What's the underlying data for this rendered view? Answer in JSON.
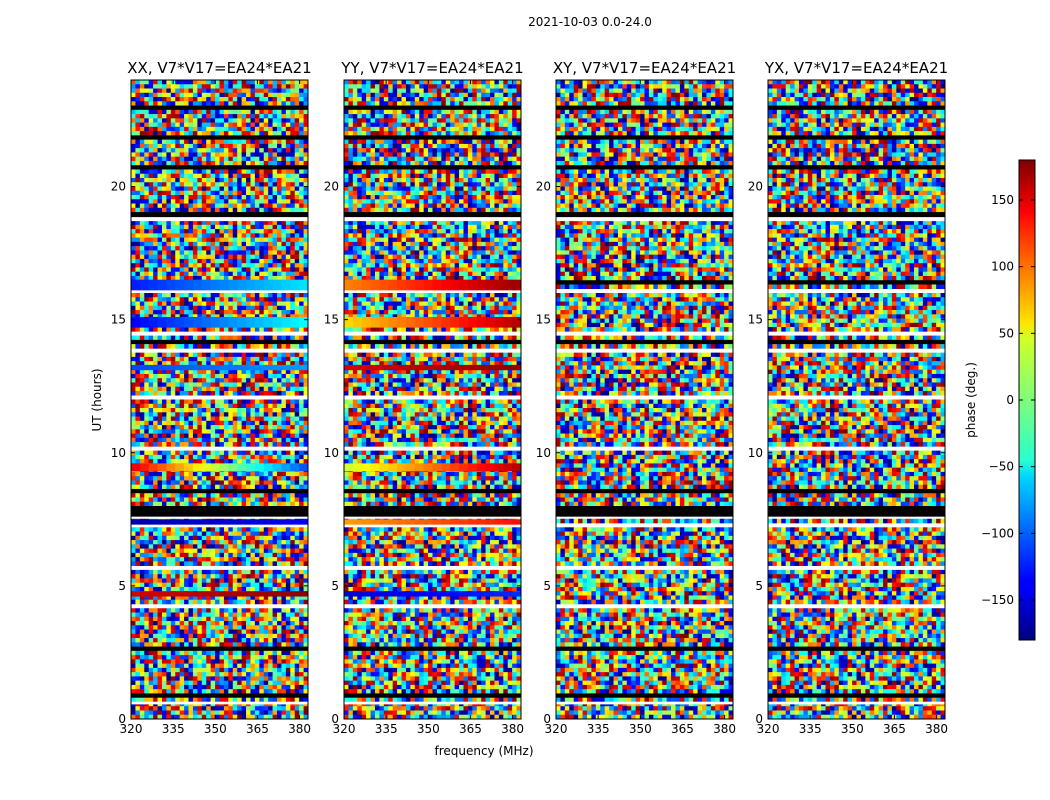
{
  "figure": {
    "suptitle": "2021-10-03 0.0-24.0"
  },
  "chart_data": {
    "type": "heatmap",
    "xlabel": "frequency (MHz)",
    "ylabel": "UT (hours)",
    "xlim": [
      320,
      383
    ],
    "ylim": [
      0,
      24
    ],
    "x_ticks": [
      320,
      335,
      350,
      365,
      380
    ],
    "y_ticks": [
      0,
      5,
      10,
      15,
      20
    ],
    "panels": [
      {
        "title": "XX, V7*V17=EA24*EA21",
        "coherent_bands": [
          {
            "ut_start": 16.1,
            "ut_end": 16.5,
            "phase_start": -125,
            "phase_end": -55
          },
          {
            "ut_start": 14.7,
            "ut_end": 15.1,
            "phase_start": -135,
            "phase_end": -45
          },
          {
            "ut_start": 13.1,
            "ut_end": 13.3,
            "phase_start": -110,
            "phase_end": -80
          },
          {
            "ut_start": 9.3,
            "ut_end": 9.6,
            "phase_start": 140,
            "phase_end": -105
          },
          {
            "ut_start": 7.3,
            "ut_end": 7.5,
            "phase_start": -165,
            "phase_end": -140
          },
          {
            "ut_start": 4.6,
            "ut_end": 4.8,
            "phase_start": 150,
            "phase_end": 175
          }
        ]
      },
      {
        "title": "YY, V7*V17=EA24*EA21",
        "coherent_bands": [
          {
            "ut_start": 16.1,
            "ut_end": 16.5,
            "phase_start": 90,
            "phase_end": 170
          },
          {
            "ut_start": 14.7,
            "ut_end": 15.1,
            "phase_start": 60,
            "phase_end": 160
          },
          {
            "ut_start": 13.1,
            "ut_end": 13.3,
            "phase_start": 150,
            "phase_end": 175
          },
          {
            "ut_start": 9.3,
            "ut_end": 9.6,
            "phase_start": 30,
            "phase_end": 160
          },
          {
            "ut_start": 7.3,
            "ut_end": 7.5,
            "phase_start": 80,
            "phase_end": 130
          },
          {
            "ut_start": 4.6,
            "ut_end": 4.8,
            "phase_start": -150,
            "phase_end": -120
          }
        ]
      },
      {
        "title": "XY, V7*V17=EA24*EA21",
        "coherent_bands": []
      },
      {
        "title": "YX, V7*V17=EA24*EA21",
        "coherent_bands": []
      }
    ],
    "flagged_bands": [
      {
        "ut_start": 7.6,
        "ut_end": 8.0
      },
      {
        "ut_start": 18.7,
        "ut_end": 18.85
      },
      {
        "ut_start": 0.55,
        "ut_end": 0.65
      }
    ],
    "colorbar": {
      "label": "phase (deg.)",
      "colormap": "jet",
      "vmin": -180,
      "vmax": 180,
      "ticks": [
        -150,
        -100,
        -50,
        0,
        50,
        100,
        150
      ],
      "tick_labels": [
        "−150",
        "−100",
        "−50",
        "0",
        "50",
        "100",
        "150"
      ]
    }
  }
}
